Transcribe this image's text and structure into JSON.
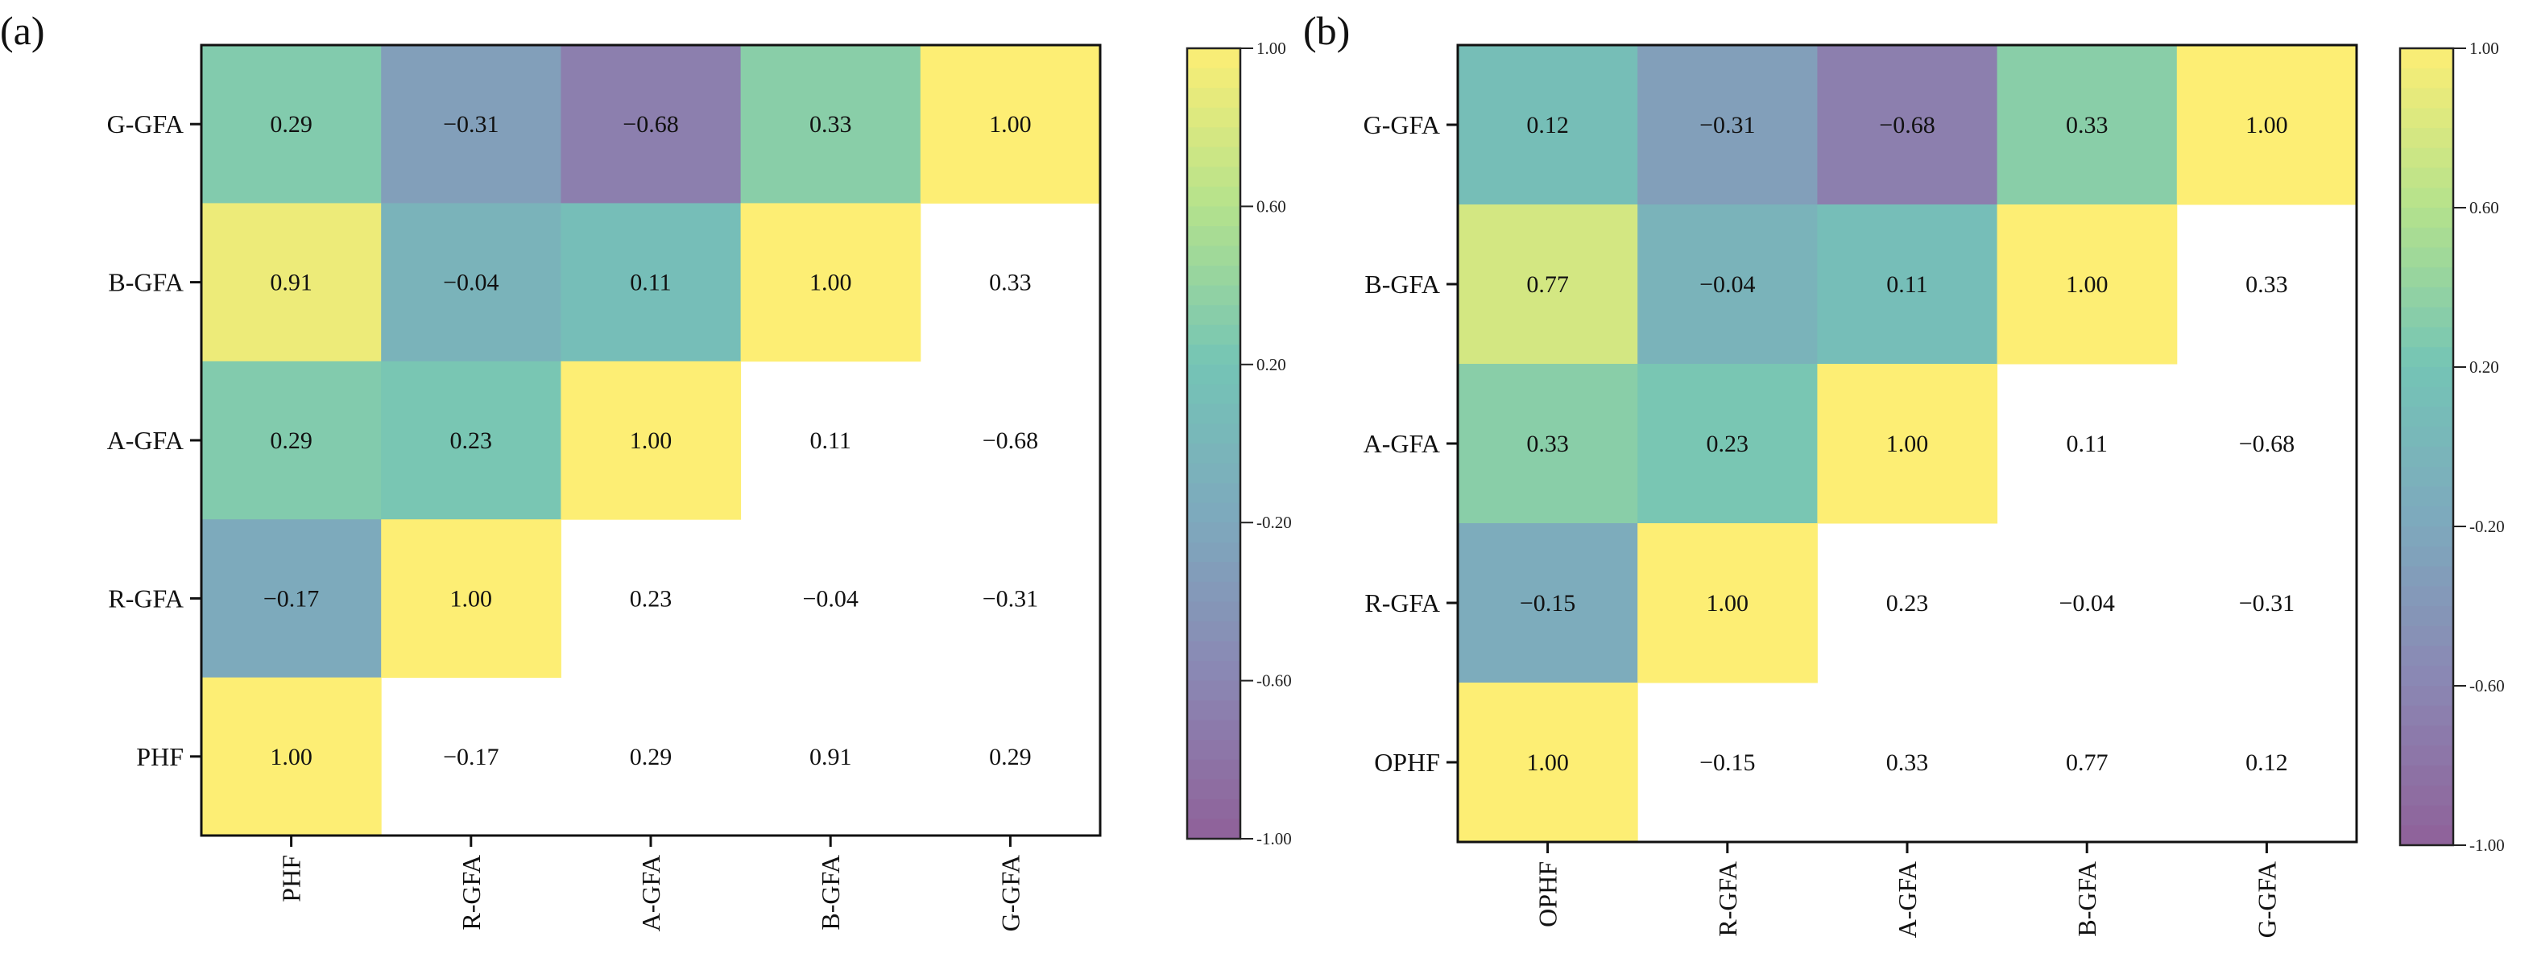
{
  "chart_data": [
    {
      "type": "heatmap",
      "panel_label": "(a)",
      "variables": [
        "PHF",
        "R-GFA",
        "A-GFA",
        "B-GFA",
        "G-GFA"
      ],
      "matrix": [
        [
          1.0,
          -0.17,
          0.29,
          0.91,
          0.29
        ],
        [
          -0.17,
          1.0,
          0.23,
          -0.04,
          -0.31
        ],
        [
          0.29,
          0.23,
          1.0,
          0.11,
          -0.68
        ],
        [
          0.91,
          -0.04,
          0.11,
          1.0,
          0.33
        ],
        [
          0.29,
          -0.31,
          -0.68,
          0.33,
          1.0
        ]
      ],
      "colorbar": {
        "range": [
          -1.0,
          1.0
        ],
        "ticks": [
          "1.00",
          "0.60",
          "0.20",
          "-0.20",
          "-0.60",
          "-1.00"
        ]
      },
      "note": "lower triangle colored, upper triangle shows values on white"
    },
    {
      "type": "heatmap",
      "panel_label": "(b)",
      "variables": [
        "OPHF",
        "R-GFA",
        "A-GFA",
        "B-GFA",
        "G-GFA"
      ],
      "matrix": [
        [
          1.0,
          -0.15,
          0.33,
          0.77,
          0.12
        ],
        [
          -0.15,
          1.0,
          0.23,
          -0.04,
          -0.31
        ],
        [
          0.33,
          0.23,
          1.0,
          0.11,
          -0.68
        ],
        [
          0.77,
          -0.04,
          0.11,
          1.0,
          0.33
        ],
        [
          0.12,
          -0.31,
          -0.68,
          0.33,
          1.0
        ]
      ],
      "colorbar": {
        "range": [
          -1.0,
          1.0
        ],
        "ticks": [
          "1.00",
          "0.60",
          "0.20",
          "-0.20",
          "-0.60",
          "-1.00"
        ]
      },
      "note": "lower triangle colored, upper triangle shows values on white"
    }
  ],
  "colors": {
    "scale": [
      "#8f6199",
      "#8b86b3",
      "#7ea8bd",
      "#74c4b6",
      "#b4e28c",
      "#fdee74"
    ]
  }
}
